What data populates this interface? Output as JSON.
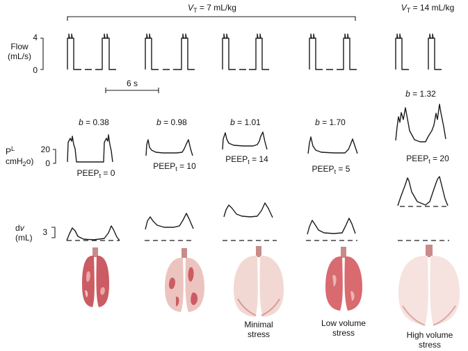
{
  "headers": {
    "vt_low": {
      "symbol": "V",
      "sub": "T",
      "text": " = 7 mL/kg"
    },
    "vt_high": {
      "symbol": "V",
      "sub": "T",
      "text": " = 14 mL/kg"
    }
  },
  "axes": {
    "flow": {
      "label_line1": "Flow",
      "label_line2": "(mL/s)",
      "tick_top": "4",
      "tick_bottom": "0"
    },
    "pl": {
      "label_main": "P",
      "label_sup": "L",
      "label_line2": "cmH",
      "label_line2_sub": "2",
      "label_line2_end": "o)",
      "tick_top": "20",
      "tick_bottom": "0"
    },
    "dv": {
      "label_main": "d",
      "label_var": "v",
      "label_line2": "(mL)",
      "tick": "3"
    }
  },
  "scale_bar": {
    "label": "6 s"
  },
  "groups": [
    {
      "b_prefix": "b",
      "b_value": " = 0.38",
      "peep_prefix": "PEEP",
      "peep_sub": "t",
      "peep_value": " = 0",
      "outcome": ""
    },
    {
      "b_prefix": "b",
      "b_value": " = 0.98",
      "peep_prefix": "PEEP",
      "peep_sub": "t",
      "peep_value": " = 10",
      "outcome": ""
    },
    {
      "b_prefix": "b",
      "b_value": " = 1.01",
      "peep_prefix": "PEEP",
      "peep_sub": "t",
      "peep_value": " = 14",
      "outcome_line1": "Minimal",
      "outcome_line2": "stress"
    },
    {
      "b_prefix": "b",
      "b_value": " = 1.70",
      "peep_prefix": "PEEP",
      "peep_sub": "t",
      "peep_value": " = 5",
      "outcome_line1": "Low volume",
      "outcome_line2": "stress"
    },
    {
      "b_prefix": "b",
      "b_value": " = 1.32",
      "peep_prefix": "PEEP",
      "peep_sub": "t",
      "peep_value": " = 20",
      "outcome_line1": "High volume",
      "outcome_line2": "stress"
    }
  ],
  "lung_colors": {
    "injured": "#c9525a",
    "healthy": "#efd2cd",
    "shade": "#d99a96",
    "base": "#f6e6e2"
  }
}
